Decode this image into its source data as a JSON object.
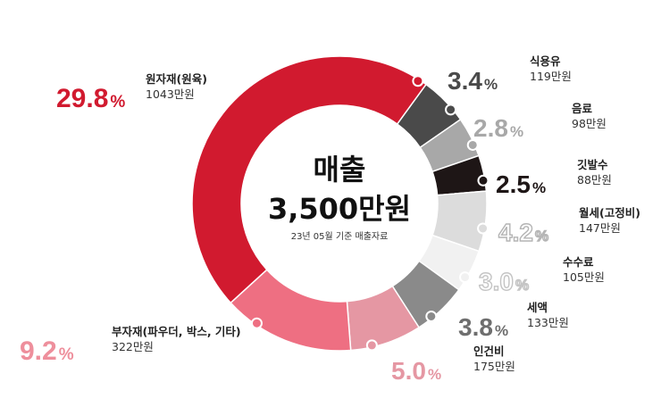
{
  "chart_data": {
    "type": "pie",
    "style": "donut",
    "center": {
      "title": "매출",
      "total": "3,500만원",
      "note": "23년 05월 기준 매출자료"
    },
    "percent_sign": "%",
    "slices": [
      {
        "label": "식용유",
        "percent": 3.4,
        "percent_text": "3.4",
        "amount": "119만원",
        "color": "#4a4a4a",
        "text_color": "#4a4a4a",
        "outline": false
      },
      {
        "label": "음료",
        "percent": 2.8,
        "percent_text": "2.8",
        "amount": "98만원",
        "color": "#a8a8a8",
        "text_color": "#a8a8a8",
        "outline": false
      },
      {
        "label": "깃발수",
        "percent": 2.5,
        "percent_text": "2.5",
        "amount": "88만원",
        "color": "#1e1616",
        "text_color": "#1e1616",
        "outline": false
      },
      {
        "label": "월세(고정비)",
        "percent": 4.2,
        "percent_text": "4.2",
        "amount": "147만원",
        "color": "#dcdcdc",
        "text_color": "#b4b4b4",
        "outline": true
      },
      {
        "label": "수수료",
        "percent": 3.0,
        "percent_text": "3.0",
        "amount": "105만원",
        "color": "#f1f1f1",
        "text_color": "#c4c4c4",
        "outline": true
      },
      {
        "label": "세액",
        "percent": 3.8,
        "percent_text": "3.8",
        "amount": "133만원",
        "color": "#8a8a8a",
        "text_color": "#6e6e6e",
        "outline": false
      },
      {
        "label": "인건비",
        "percent": 5.0,
        "percent_text": "5.0",
        "amount": "175만원",
        "color": "#e597a3",
        "text_color": "#e597a3",
        "outline": false
      },
      {
        "label": "부자재(파우더, 박스, 기타)",
        "percent": 9.2,
        "percent_text": "9.2",
        "amount": "322만원",
        "color": "#ee6f82",
        "text_color": "#ee8f9c",
        "outline": false
      },
      {
        "label": "원자재(원육)",
        "percent": 29.8,
        "percent_text": "29.8",
        "amount": "1043만원",
        "color": "#d11a2f",
        "text_color": "#d11a2f",
        "outline": false
      }
    ]
  }
}
